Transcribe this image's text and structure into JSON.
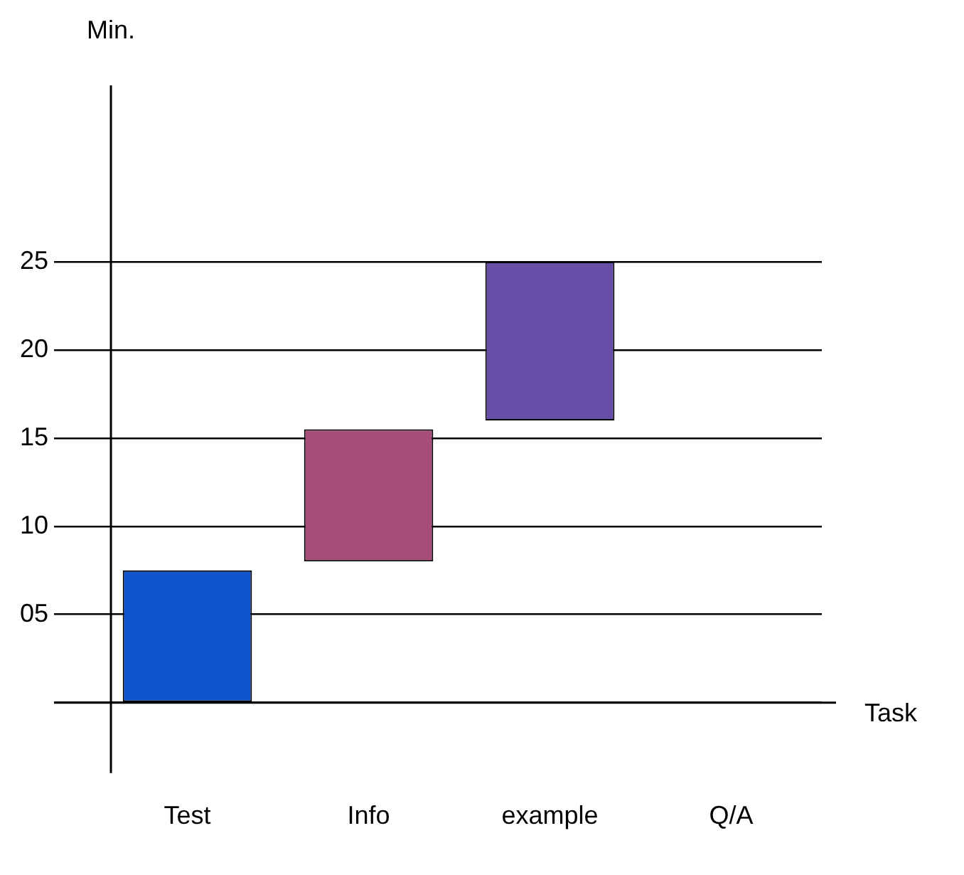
{
  "chart_data": {
    "type": "bar",
    "ylabel": "Min.",
    "xlabel": "Task",
    "categories": [
      "Test",
      "Info",
      "example",
      "Q/A"
    ],
    "base": [
      0,
      8,
      16,
      null
    ],
    "values": [
      7.5,
      7.5,
      9,
      null
    ],
    "colors": [
      "#1155cc",
      "#a64d79",
      "#674ea7",
      "#674ea7"
    ],
    "ylim": [
      -4,
      35
    ],
    "yticks": [
      {
        "value": 0,
        "label": null
      },
      {
        "value": 5,
        "label": "05"
      },
      10,
      15,
      20,
      25
    ],
    "grid": "y",
    "legend": false
  }
}
